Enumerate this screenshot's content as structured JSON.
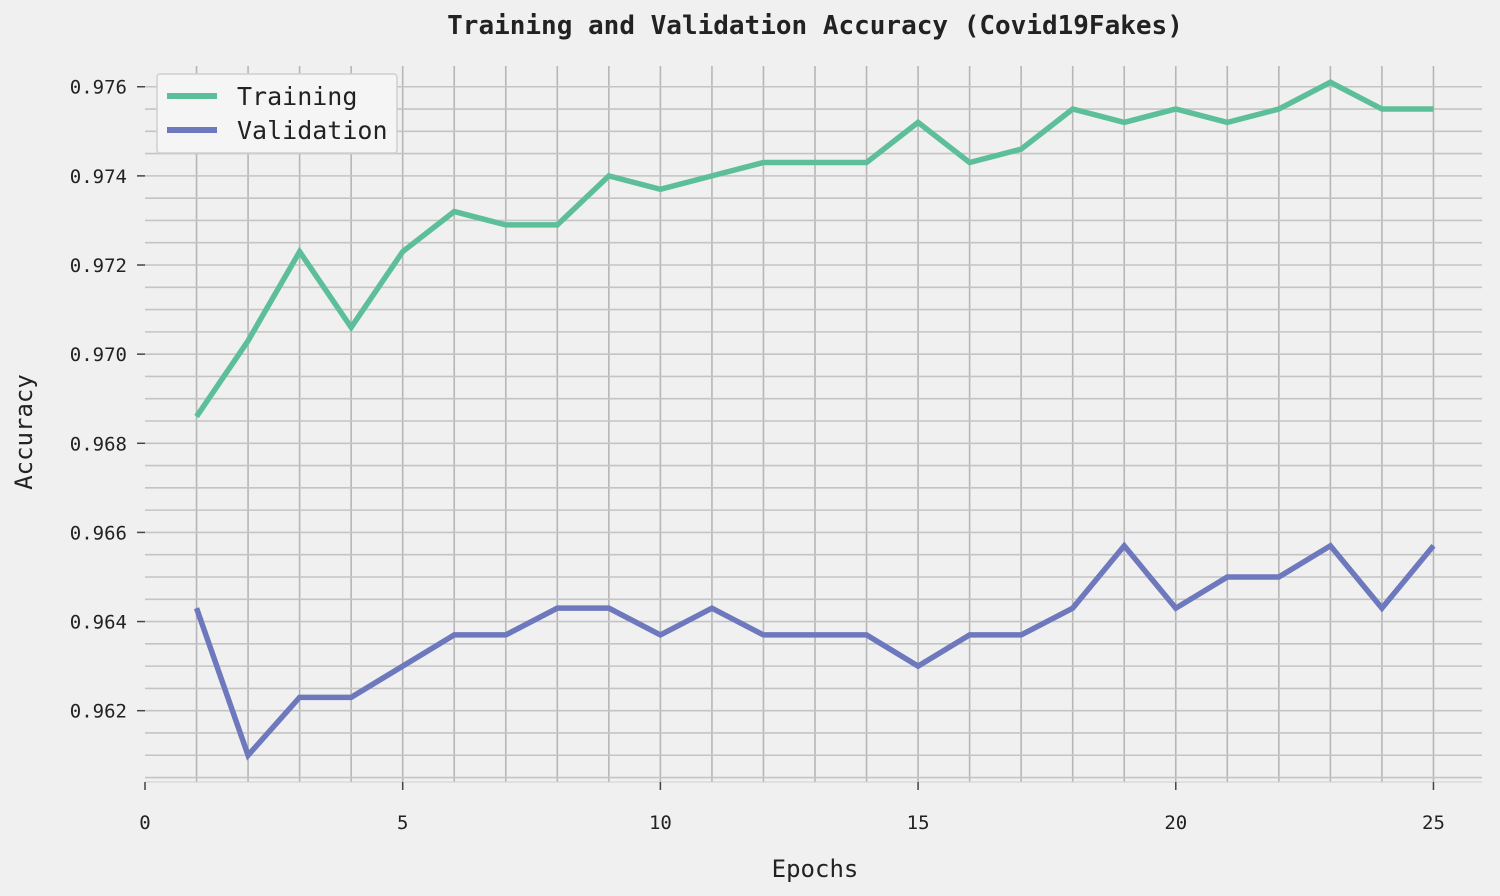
{
  "chart_data": {
    "type": "line",
    "title": "Training and Validation Accuracy (Covid19Fakes)",
    "xlabel": "Epochs",
    "ylabel": "Accuracy",
    "xlim": [
      0,
      26
    ],
    "ylim": [
      0.9604,
      0.9766
    ],
    "xticks": [
      "0",
      "5",
      "10",
      "15",
      "20",
      "25"
    ],
    "yticks": [
      "0.962",
      "0.964",
      "0.966",
      "0.968",
      "0.970",
      "0.972",
      "0.974",
      "0.976"
    ],
    "grid": true,
    "legend_position": "top-left",
    "x": [
      1,
      2,
      3,
      4,
      5,
      6,
      7,
      8,
      9,
      10,
      11,
      12,
      13,
      14,
      15,
      16,
      17,
      18,
      19,
      20,
      21,
      22,
      23,
      24,
      25
    ],
    "series": [
      {
        "name": "Training",
        "color": "#5dbf99",
        "values": [
          0.9686,
          0.9703,
          0.9723,
          0.9706,
          0.9723,
          0.9732,
          0.9729,
          0.9729,
          0.974,
          0.9737,
          0.974,
          0.9743,
          0.9743,
          0.9743,
          0.9752,
          0.9743,
          0.9746,
          0.9755,
          0.9752,
          0.9755,
          0.9752,
          0.9755,
          0.9761,
          0.9755,
          0.9755
        ]
      },
      {
        "name": "Validation",
        "color": "#6e79bd",
        "values": [
          0.9643,
          0.961,
          0.9623,
          0.9623,
          0.963,
          0.9637,
          0.9637,
          0.9643,
          0.9643,
          0.9637,
          0.9643,
          0.9637,
          0.9637,
          0.9637,
          0.963,
          0.9637,
          0.9637,
          0.9643,
          0.9657,
          0.9643,
          0.965,
          0.965,
          0.9657,
          0.9643,
          0.9657
        ]
      }
    ]
  }
}
